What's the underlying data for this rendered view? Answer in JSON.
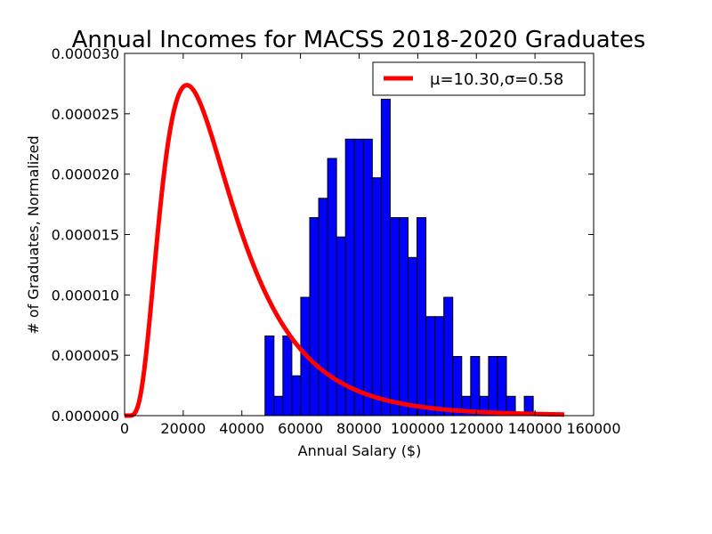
{
  "chart_data": {
    "type": "bar",
    "title": "Annual Incomes for MACSS 2018-2020 Graduates",
    "xlabel": "Annual Salary ($)",
    "ylabel": "# of Graduates, Normalized",
    "xlim": [
      0,
      160000
    ],
    "ylim": [
      0,
      3e-05
    ],
    "xticks": [
      "0",
      "20000",
      "40000",
      "60000",
      "80000",
      "100000",
      "120000",
      "140000",
      "160000"
    ],
    "yticks": [
      "0.000000",
      "0.000005",
      "0.000010",
      "0.000015",
      "0.000020",
      "0.000025",
      "0.000030"
    ],
    "grid": false,
    "legend_placement": "upper-right",
    "histogram": {
      "color": "#0000ff",
      "bin_width": 3050,
      "bins": [
        {
          "x0": 47900,
          "value": 6.6e-06
        },
        {
          "x0": 50950,
          "value": 1.6e-06
        },
        {
          "x0": 54000,
          "value": 6.6e-06
        },
        {
          "x0": 57050,
          "value": 3.3e-06
        },
        {
          "x0": 60100,
          "value": 9.8e-06
        },
        {
          "x0": 63150,
          "value": 1.64e-05
        },
        {
          "x0": 66200,
          "value": 1.8e-05
        },
        {
          "x0": 69250,
          "value": 2.13e-05
        },
        {
          "x0": 72300,
          "value": 1.48e-05
        },
        {
          "x0": 75350,
          "value": 2.29e-05
        },
        {
          "x0": 78400,
          "value": 2.29e-05
        },
        {
          "x0": 81450,
          "value": 2.29e-05
        },
        {
          "x0": 84500,
          "value": 1.97e-05
        },
        {
          "x0": 87550,
          "value": 2.62e-05
        },
        {
          "x0": 90600,
          "value": 1.64e-05
        },
        {
          "x0": 93650,
          "value": 1.64e-05
        },
        {
          "x0": 96700,
          "value": 1.31e-05
        },
        {
          "x0": 99750,
          "value": 1.64e-05
        },
        {
          "x0": 102800,
          "value": 8.2e-06
        },
        {
          "x0": 105850,
          "value": 8.2e-06
        },
        {
          "x0": 108900,
          "value": 9.8e-06
        },
        {
          "x0": 111950,
          "value": 4.9e-06
        },
        {
          "x0": 115000,
          "value": 1.6e-06
        },
        {
          "x0": 118050,
          "value": 4.9e-06
        },
        {
          "x0": 121100,
          "value": 1.6e-06
        },
        {
          "x0": 124150,
          "value": 4.9e-06
        },
        {
          "x0": 127200,
          "value": 4.9e-06
        },
        {
          "x0": 130250,
          "value": 1.6e-06
        },
        {
          "x0": 133300,
          "value": 0
        },
        {
          "x0": 136350,
          "value": 1.6e-06
        }
      ]
    },
    "series": [
      {
        "name": "μ=10.30,σ=0.58",
        "type": "line",
        "color": "#ff0000",
        "distribution": "lognormal",
        "mu": 10.3,
        "sigma": 0.58,
        "x_range": [
          0,
          150000
        ]
      }
    ]
  }
}
